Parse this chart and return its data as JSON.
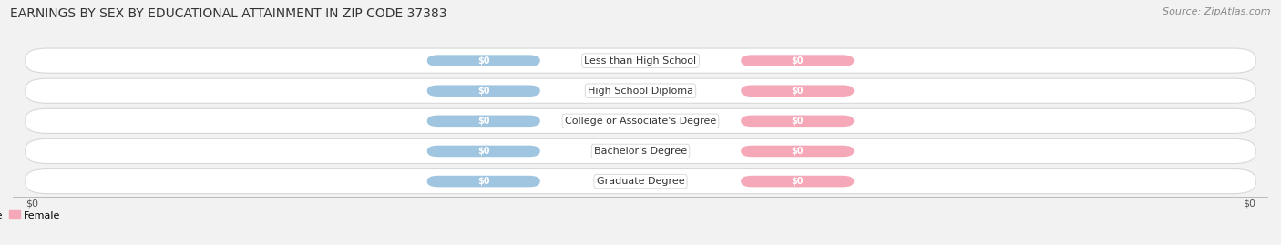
{
  "title": "EARNINGS BY SEX BY EDUCATIONAL ATTAINMENT IN ZIP CODE 37383",
  "source": "Source: ZipAtlas.com",
  "categories": [
    "Less than High School",
    "High School Diploma",
    "College or Associate's Degree",
    "Bachelor's Degree",
    "Graduate Degree"
  ],
  "male_color": "#9fc5e0",
  "female_color": "#f4a8b8",
  "male_label": "Male",
  "female_label": "Female",
  "bar_label": "$0",
  "axis_label": "$0",
  "bg_color": "#f2f2f2",
  "row_light": "#f7f7f7",
  "row_dark": "#ebebeb",
  "title_fontsize": 10,
  "source_fontsize": 8,
  "category_fontsize": 8,
  "bar_label_fontsize": 7,
  "legend_fontsize": 8,
  "axis_tick_fontsize": 8
}
